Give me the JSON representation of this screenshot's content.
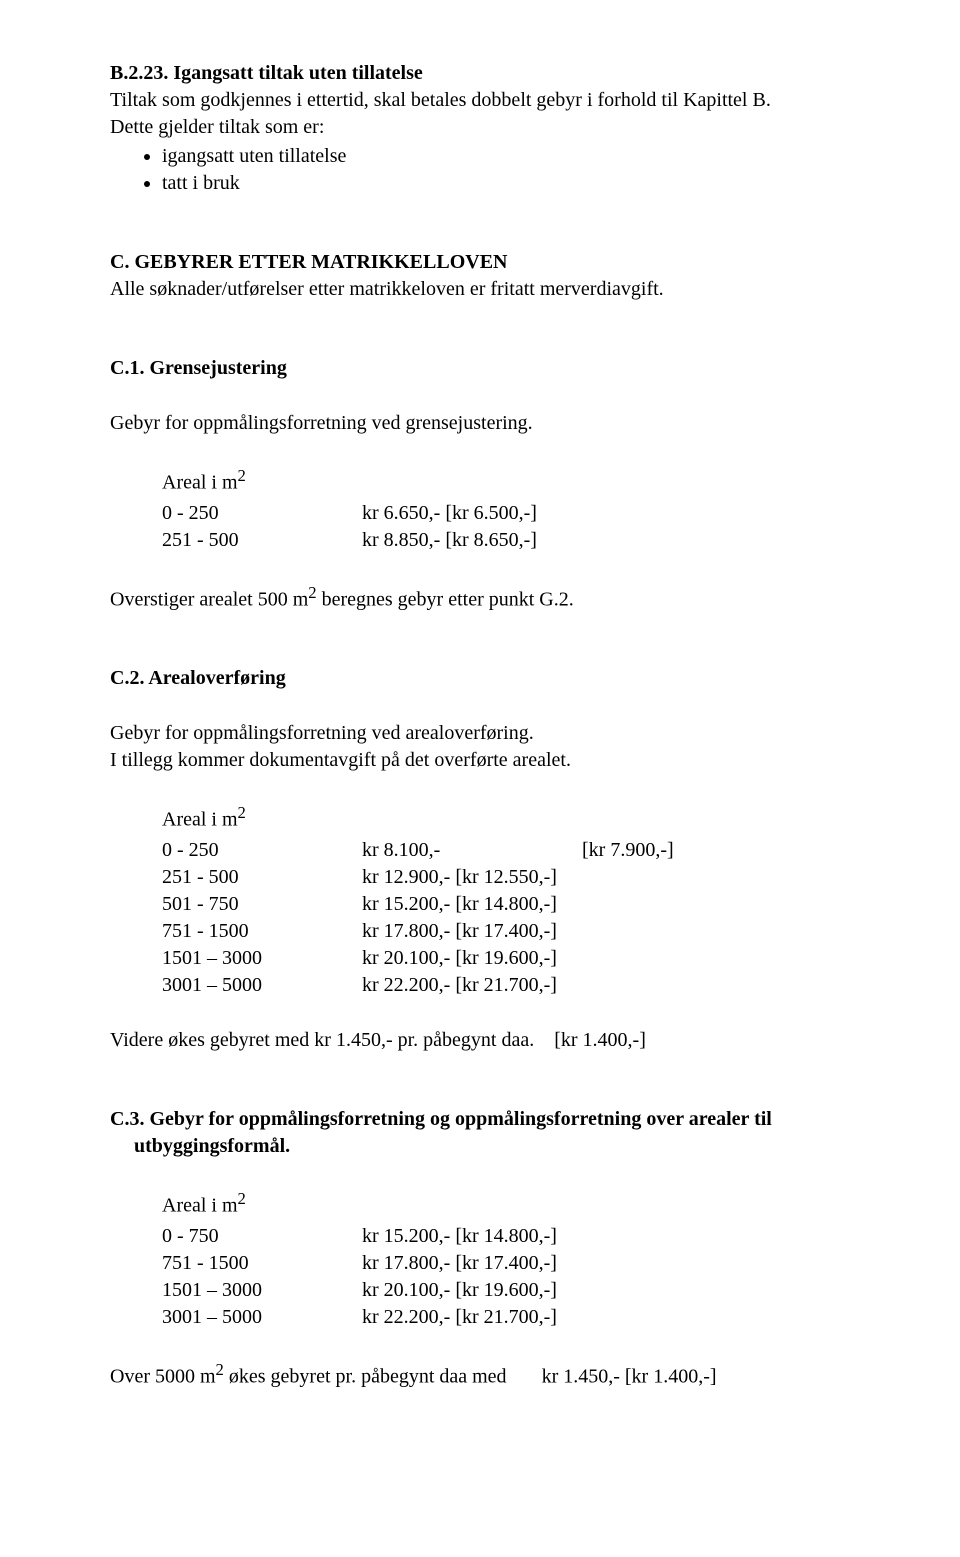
{
  "s_b223": {
    "heading": "B.2.23. Igangsatt tiltak uten tillatelse",
    "line1": "Tiltak som godkjennes i ettertid, skal betales dobbelt gebyr i forhold til Kapittel B.",
    "line2": "Dette gjelder tiltak som er:",
    "bullets": [
      "igangsatt uten tillatelse",
      "tatt i bruk"
    ]
  },
  "s_c": {
    "heading": "C. GEBYRER ETTER MATRIKKELLOVEN",
    "line1": "Alle søknader/utførelser etter matrikkeloven er fritatt merverdiavgift."
  },
  "s_c1": {
    "heading": "C.1. Grensejustering",
    "line1": "Gebyr for oppmålingsforretning ved grensejustering.",
    "areal_label": "Areal i m",
    "sup": "2",
    "rows": [
      {
        "range": "0 - 250",
        "price": "kr 6.650,- [kr 6.500,-]"
      },
      {
        "range": "251 - 500",
        "price": "kr 8.850,- [kr 8.650,-]"
      }
    ],
    "footer_a": "Overstiger arealet 500 m",
    "footer_b": " beregnes gebyr etter punkt G.2."
  },
  "s_c2": {
    "heading": "C.2. Arealoverføring",
    "line1": "Gebyr for oppmålingsforretning ved arealoverføring.",
    "line2": "I tillegg kommer dokumentavgift på det overførte arealet.",
    "areal_label": "Areal i m",
    "sup": "2",
    "rows": [
      {
        "range": "0 - 250",
        "price": "kr 8.100,-",
        "prev": "[kr 7.900,-]"
      },
      {
        "range": "251 - 500",
        "price": "kr 12.900,- [kr 12.550,-]",
        "prev": ""
      },
      {
        "range": "501 - 750",
        "price": "kr 15.200,- [kr 14.800,-]",
        "prev": ""
      },
      {
        "range": "751 - 1500",
        "price": "kr 17.800,- [kr 17.400,-]",
        "prev": ""
      },
      {
        "range": "1501 – 3000",
        "price": "kr 20.100,- [kr 19.600,-]",
        "prev": ""
      },
      {
        "range": "3001 – 5000",
        "price": "kr 22.200,- [kr 21.700,-]",
        "prev": ""
      }
    ],
    "footer_a": "Videre økes gebyret med kr 1.450,- pr. påbegynt daa.",
    "footer_b": "[kr 1.400,-]"
  },
  "s_c3": {
    "heading": "C.3. Gebyr for oppmålingsforretning og oppmålingsforretning over arealer til utbyggingsformål.",
    "areal_label": "Areal i m",
    "sup": "2",
    "rows": [
      {
        "range": " 0 - 750",
        "price": "kr 15.200,- [kr 14.800,-]"
      },
      {
        "range": "751 - 1500",
        "price": "kr 17.800,- [kr 17.400,-]"
      },
      {
        "range": "1501 – 3000",
        "price": "kr 20.100,- [kr 19.600,-]"
      },
      {
        "range": "3001 – 5000",
        "price": "kr 22.200,- [kr 21.700,-]"
      }
    ],
    "footer_a": "Over 5000 m",
    "footer_b": " økes gebyret pr. påbegynt daa med",
    "footer_c": "kr 1.450,- [kr 1.400,-]"
  }
}
